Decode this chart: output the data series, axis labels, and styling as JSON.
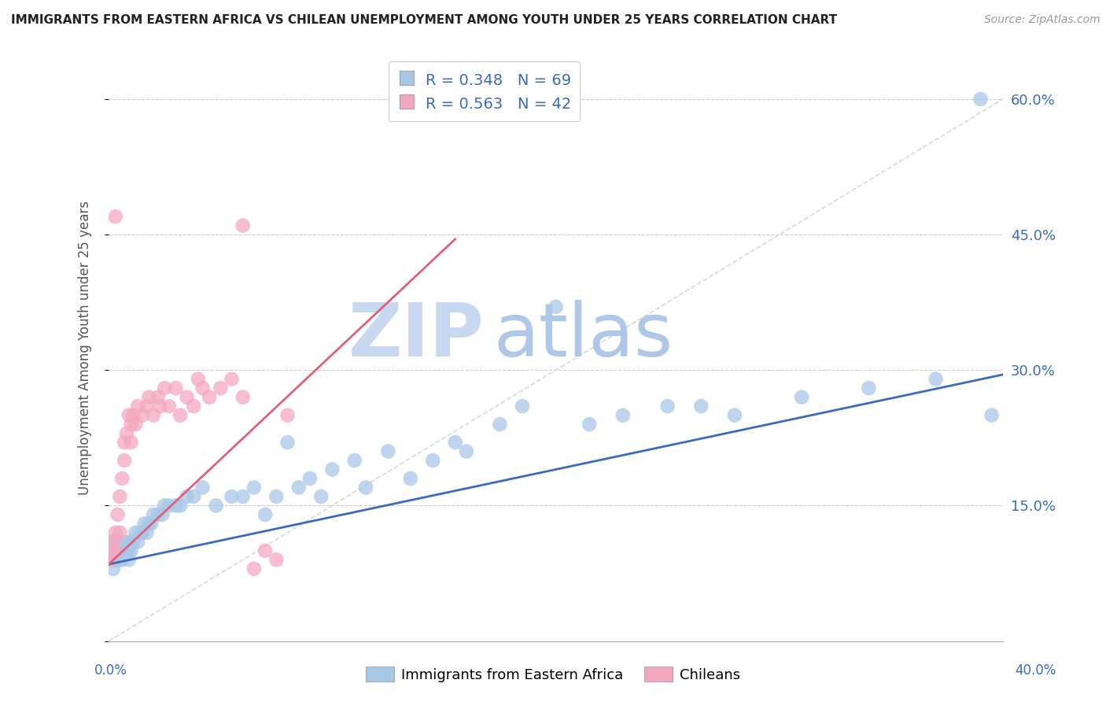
{
  "title": "IMMIGRANTS FROM EASTERN AFRICA VS CHILEAN UNEMPLOYMENT AMONG YOUTH UNDER 25 YEARS CORRELATION CHART",
  "source": "Source: ZipAtlas.com",
  "ylabel": "Unemployment Among Youth under 25 years",
  "ytick_values": [
    0.0,
    0.15,
    0.3,
    0.45,
    0.6
  ],
  "xlim": [
    0.0,
    0.4
  ],
  "ylim": [
    0.0,
    0.65
  ],
  "legend1_r": "R = 0.348",
  "legend1_n": "N = 69",
  "legend2_r": "R = 0.563",
  "legend2_n": "N = 42",
  "blue_color": "#a8c8e8",
  "pink_color": "#f4a8c0",
  "blue_line_color": "#3a6bbf",
  "pink_line_color": "#e0607a",
  "legend_text_color": "#3a6bbf",
  "watermark_zip_color": "#c8d8f0",
  "watermark_atlas_color": "#b0c8e8",
  "ref_line_color": "#d0d0d0",
  "grid_color": "#cccccc",
  "background_color": "#ffffff",
  "blue_trend_x": [
    0.0,
    0.4
  ],
  "blue_trend_y": [
    0.085,
    0.295
  ],
  "pink_trend_x": [
    0.0,
    0.155
  ],
  "pink_trend_y": [
    0.085,
    0.445
  ],
  "ref_line_x": [
    0.0,
    0.4
  ],
  "ref_line_y": [
    0.0,
    0.6
  ],
  "blue_scatter_x": [
    0.001,
    0.001,
    0.002,
    0.002,
    0.003,
    0.003,
    0.004,
    0.004,
    0.005,
    0.005,
    0.006,
    0.006,
    0.007,
    0.007,
    0.008,
    0.009,
    0.009,
    0.01,
    0.01,
    0.011,
    0.012,
    0.013,
    0.014,
    0.015,
    0.016,
    0.017,
    0.018,
    0.019,
    0.02,
    0.022,
    0.024,
    0.025,
    0.027,
    0.03,
    0.032,
    0.035,
    0.038,
    0.042,
    0.048,
    0.055,
    0.06,
    0.065,
    0.07,
    0.075,
    0.08,
    0.085,
    0.09,
    0.095,
    0.1,
    0.11,
    0.115,
    0.125,
    0.135,
    0.145,
    0.155,
    0.16,
    0.175,
    0.185,
    0.2,
    0.215,
    0.23,
    0.25,
    0.265,
    0.28,
    0.31,
    0.34,
    0.37,
    0.39,
    0.395
  ],
  "blue_scatter_y": [
    0.09,
    0.1,
    0.08,
    0.11,
    0.09,
    0.1,
    0.1,
    0.11,
    0.09,
    0.1,
    0.1,
    0.09,
    0.11,
    0.1,
    0.1,
    0.09,
    0.1,
    0.1,
    0.11,
    0.11,
    0.12,
    0.11,
    0.12,
    0.12,
    0.13,
    0.12,
    0.13,
    0.13,
    0.14,
    0.14,
    0.14,
    0.15,
    0.15,
    0.15,
    0.15,
    0.16,
    0.16,
    0.17,
    0.15,
    0.16,
    0.16,
    0.17,
    0.14,
    0.16,
    0.22,
    0.17,
    0.18,
    0.16,
    0.19,
    0.2,
    0.17,
    0.21,
    0.18,
    0.2,
    0.22,
    0.21,
    0.24,
    0.26,
    0.37,
    0.24,
    0.25,
    0.26,
    0.26,
    0.25,
    0.27,
    0.28,
    0.29,
    0.6,
    0.25
  ],
  "pink_scatter_x": [
    0.001,
    0.001,
    0.002,
    0.003,
    0.003,
    0.004,
    0.005,
    0.005,
    0.006,
    0.007,
    0.007,
    0.008,
    0.009,
    0.01,
    0.01,
    0.011,
    0.012,
    0.013,
    0.015,
    0.017,
    0.018,
    0.02,
    0.022,
    0.023,
    0.025,
    0.027,
    0.03,
    0.032,
    0.035,
    0.038,
    0.04,
    0.042,
    0.045,
    0.05,
    0.055,
    0.06,
    0.065,
    0.07,
    0.075,
    0.08,
    0.003,
    0.06
  ],
  "pink_scatter_y": [
    0.09,
    0.1,
    0.11,
    0.1,
    0.12,
    0.14,
    0.12,
    0.16,
    0.18,
    0.2,
    0.22,
    0.23,
    0.25,
    0.24,
    0.22,
    0.25,
    0.24,
    0.26,
    0.25,
    0.26,
    0.27,
    0.25,
    0.27,
    0.26,
    0.28,
    0.26,
    0.28,
    0.25,
    0.27,
    0.26,
    0.29,
    0.28,
    0.27,
    0.28,
    0.29,
    0.27,
    0.08,
    0.1,
    0.09,
    0.25,
    0.47,
    0.46
  ]
}
